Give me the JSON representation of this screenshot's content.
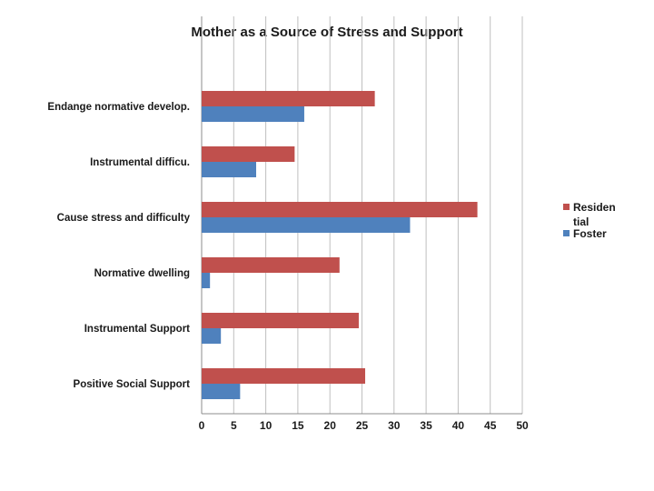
{
  "chart_data": {
    "type": "bar",
    "orientation": "horizontal",
    "title": "Mother as  a Source of Stress and Support",
    "categories": [
      "Endange normative develop.",
      "Instrumental difficu.",
      "Cause stress and difficulty",
      "Normative dwelling",
      "Instrumental Support",
      "Positive Social Support"
    ],
    "series": [
      {
        "name": "Residential",
        "legend_lines": [
          "Residen",
          "tial"
        ],
        "color": "#c0504d",
        "values": [
          27,
          14.5,
          43,
          21.5,
          24.5,
          25.5
        ]
      },
      {
        "name": "Foster",
        "legend_lines": [
          "Foster"
        ],
        "color": "#4f81bd",
        "values": [
          16,
          8.5,
          32.5,
          1.3,
          3,
          6
        ]
      }
    ],
    "xlim": [
      0,
      50
    ],
    "xticks": [
      "0",
      "5",
      "10",
      "15",
      "20",
      "25",
      "30",
      "35",
      "40",
      "45",
      "50"
    ],
    "grid": true,
    "legend_position": "right"
  }
}
